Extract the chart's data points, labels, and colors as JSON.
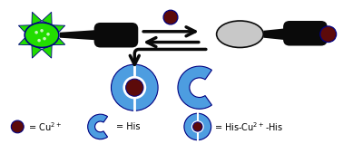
{
  "bg_color": "#ffffff",
  "dark_color": "#0a0a0a",
  "blue_color": "#4d9de0",
  "dark_red": "#5c0a0a",
  "green_color": "#22dd00",
  "navy": "#000080",
  "grey_oval": "#c8c8c8",
  "fig_w": 3.78,
  "fig_h": 1.59,
  "dpi": 100
}
